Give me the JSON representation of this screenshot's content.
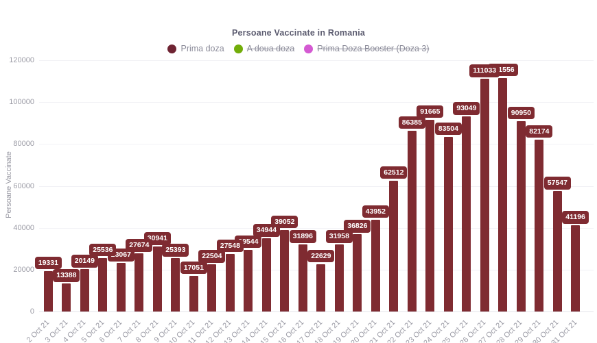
{
  "title": "Persoane Vaccinate in Romania",
  "y_axis": {
    "title": "Persoane Vaccinate",
    "ticks": [
      0,
      20000,
      40000,
      60000,
      80000,
      100000,
      120000
    ],
    "max": 120000
  },
  "legend": {
    "items": [
      {
        "label": "Prima doza",
        "color": "#6f2433",
        "active": true
      },
      {
        "label": "A doua doza",
        "color": "#72ad09",
        "active": false
      },
      {
        "label": "Prima Doza Booster (Doza 3)",
        "color": "#d45ad2",
        "active": false
      }
    ]
  },
  "colors": {
    "bar": "#7f2b31",
    "label_pill_bg": "#7f2b31",
    "label_pill_text": "#ffffff",
    "title_text": "#5c5c70",
    "axis_text": "#9b9ba5",
    "gridline": "#f1f1f5"
  },
  "chart_data": {
    "type": "bar",
    "title": "Persoane Vaccinate in Romania",
    "xlabel": "",
    "ylabel": "Persoane Vaccinate",
    "ylim": [
      0,
      120000
    ],
    "grid": true,
    "legend_position": "top",
    "categories": [
      "2 Oct 21",
      "3 Oct 21",
      "4 Oct 21",
      "5 Oct 21",
      "6 Oct 21",
      "7 Oct 21",
      "8 Oct 21",
      "9 Oct 21",
      "10 Oct 21",
      "11 Oct 21",
      "12 Oct 21",
      "13 Oct 21",
      "14 Oct 21",
      "15 Oct 21",
      "16 Oct 21",
      "17 Oct 21",
      "18 Oct 21",
      "19 Oct 21",
      "20 Oct 21",
      "21 Oct 21",
      "22 Oct 21",
      "23 Oct 21",
      "24 Oct 21",
      "25 Oct 21",
      "26 Oct 21",
      "27 Oct 21",
      "28 Oct 21",
      "29 Oct 21",
      "30 Oct 21",
      "31 Oct 21"
    ],
    "series": [
      {
        "name": "Prima doza",
        "color": "#7f2b31",
        "values": [
          19331,
          13388,
          20149,
          25536,
          23067,
          27674,
          30941,
          25393,
          17051,
          22504,
          27548,
          29544,
          34944,
          39052,
          31896,
          22629,
          31958,
          36826,
          43952,
          62512,
          86385,
          91665,
          83504,
          93049,
          111033,
          111556,
          90950,
          82174,
          57547,
          41196
        ]
      },
      {
        "name": "A doua doza",
        "color": "#72ad09",
        "hidden": true,
        "values": []
      },
      {
        "name": "Prima Doza Booster (Doza 3)",
        "color": "#d45ad2",
        "hidden": true,
        "values": []
      }
    ]
  }
}
